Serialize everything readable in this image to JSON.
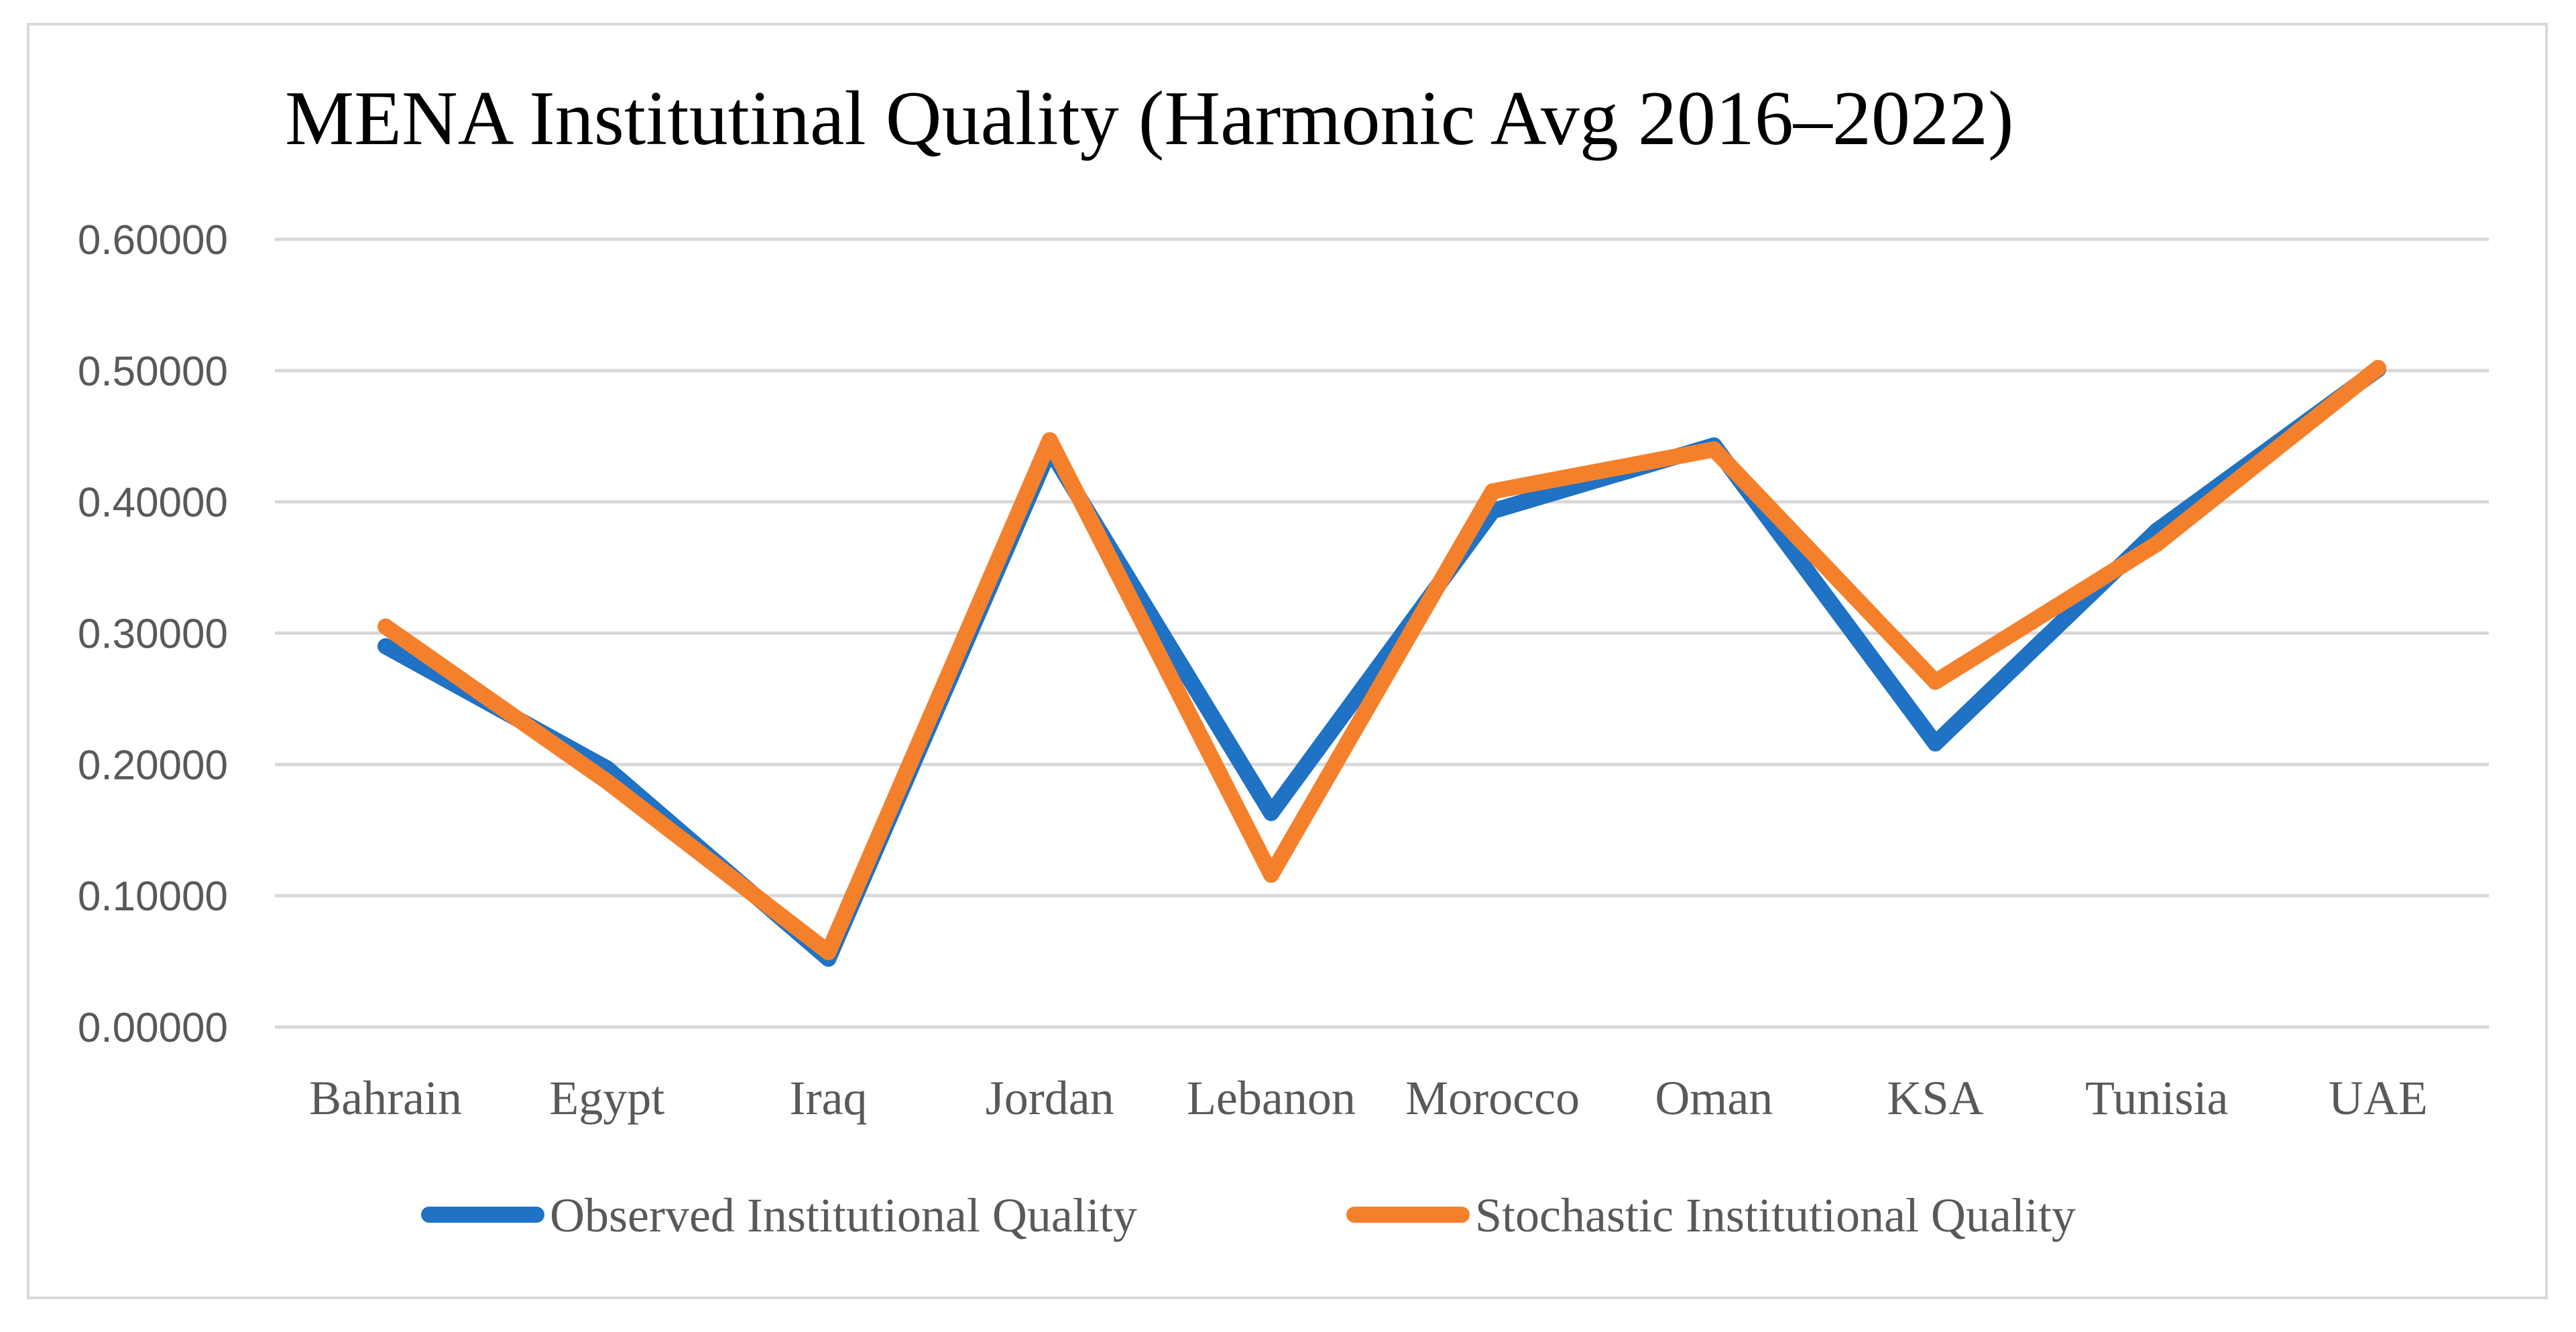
{
  "chart_data": {
    "type": "line",
    "title": "MENA Institutinal Quality (Harmonic Avg 2016–2022)",
    "categories": [
      "Bahrain",
      "Egypt",
      "Iraq",
      "Jordan",
      "Lebanon",
      "Morocco",
      "Oman",
      "KSA",
      "Tunisia",
      "UAE"
    ],
    "series": [
      {
        "name": "Observed Institutional Quality",
        "color": "#1f72c4",
        "values": [
          0.29,
          0.197,
          0.052,
          0.44,
          0.163,
          0.393,
          0.443,
          0.216,
          0.378,
          0.501
        ]
      },
      {
        "name": "Stochastic Institutional Quality",
        "color": "#f5802b",
        "values": [
          0.305,
          0.187,
          0.057,
          0.447,
          0.116,
          0.408,
          0.44,
          0.263,
          0.368,
          0.502
        ]
      }
    ],
    "ylim": [
      0,
      0.6
    ],
    "yticks": [
      "0.00000",
      "0.10000",
      "0.20000",
      "0.30000",
      "0.40000",
      "0.50000",
      "0.60000"
    ],
    "xlabel": "",
    "ylabel": "",
    "grid": true,
    "legend_position": "bottom"
  }
}
